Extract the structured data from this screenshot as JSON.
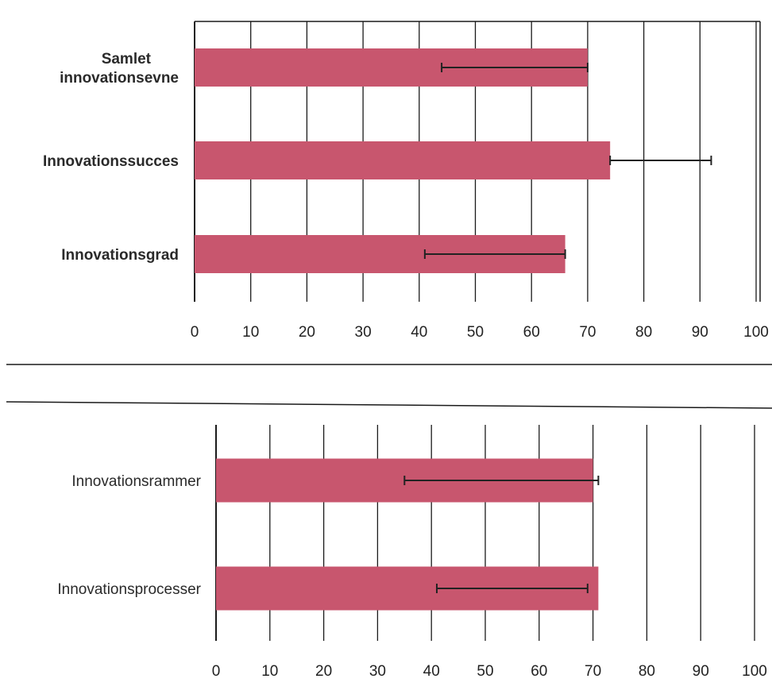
{
  "colors": {
    "bar": "#c8566e",
    "gridline": "#1a1a1a",
    "errorbar": "#222222",
    "background": "#ffffff"
  },
  "chart_data": [
    {
      "type": "bar",
      "orientation": "horizontal",
      "title": "",
      "xlabel": "",
      "ylabel": "",
      "xlim": [
        0,
        100
      ],
      "ticks": [
        "0",
        "10",
        "20",
        "30",
        "40",
        "50",
        "60",
        "70",
        "80",
        "90",
        "100"
      ],
      "grid": true,
      "categories": [
        [
          "Samlet",
          "innovationsevne"
        ],
        [
          "Innovationssucces"
        ],
        [
          "Innovationsgrad"
        ]
      ],
      "values": [
        70,
        74,
        66
      ],
      "error_low": [
        44,
        74,
        41
      ],
      "error_high": [
        70,
        92,
        66
      ]
    },
    {
      "type": "bar",
      "orientation": "horizontal",
      "title": "",
      "xlabel": "",
      "ylabel": "",
      "xlim": [
        0,
        100
      ],
      "ticks": [
        "0",
        "10",
        "20",
        "30",
        "40",
        "50",
        "60",
        "70",
        "80",
        "90",
        "100"
      ],
      "grid": true,
      "categories": [
        [
          "Innovationsrammer"
        ],
        [
          "Innovationsprocesser"
        ]
      ],
      "values": [
        70,
        71
      ],
      "error_low": [
        35,
        41
      ],
      "error_high": [
        71,
        69
      ]
    }
  ]
}
